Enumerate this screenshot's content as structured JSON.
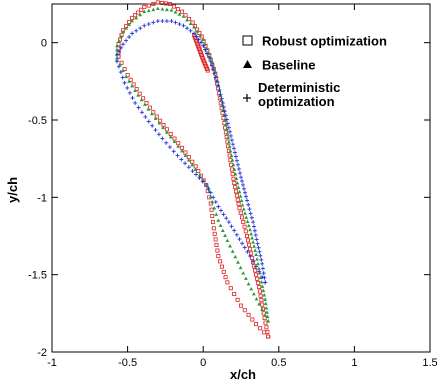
{
  "chart_data": {
    "type": "scatter",
    "xlabel": "x/ch",
    "ylabel": "y/ch",
    "xlim": [
      -1,
      1.5
    ],
    "ylim": [
      -2,
      0.25
    ],
    "x_ticks": [
      -1,
      -0.5,
      0,
      0.5,
      1,
      1.5
    ],
    "x_tick_labels": [
      "-1",
      "-0.5",
      "0",
      "0.5",
      "1",
      "1.5"
    ],
    "y_ticks": [
      0,
      -0.5,
      -1,
      -1.5,
      -2
    ],
    "y_tick_labels": [
      "0",
      "-0.5",
      "-1",
      "-1.5",
      "-2"
    ],
    "legend_position": "top-right",
    "series": [
      {
        "name": "Robust optimization",
        "marker": "square",
        "color": "#dd2222",
        "upper": [
          [
            0.43,
            -1.9
          ],
          [
            0.4,
            -1.75
          ],
          [
            0.37,
            -1.58
          ],
          [
            0.33,
            -1.42
          ],
          [
            0.29,
            -1.25
          ],
          [
            0.24,
            -1.07
          ],
          [
            0.2,
            -0.88
          ],
          [
            0.17,
            -0.7
          ],
          [
            0.14,
            -0.52
          ],
          [
            0.11,
            -0.36
          ],
          [
            0.08,
            -0.2
          ],
          [
            0.04,
            -0.08
          ],
          [
            -0.01,
            0.04
          ],
          [
            -0.07,
            0.13
          ],
          [
            -0.14,
            0.2
          ],
          [
            -0.22,
            0.25
          ],
          [
            -0.3,
            0.26
          ],
          [
            -0.39,
            0.23
          ],
          [
            -0.47,
            0.16
          ],
          [
            -0.53,
            0.08
          ],
          [
            -0.56,
            -0.01
          ],
          [
            -0.56,
            -0.09
          ]
        ],
        "lower": [
          [
            -0.56,
            -0.09
          ],
          [
            -0.5,
            -0.21
          ],
          [
            -0.42,
            -0.33
          ],
          [
            -0.33,
            -0.45
          ],
          [
            -0.24,
            -0.56
          ],
          [
            -0.14,
            -0.68
          ],
          [
            -0.05,
            -0.8
          ],
          [
            0.02,
            -0.92
          ],
          [
            0.05,
            -1.04
          ],
          [
            0.07,
            -1.2
          ],
          [
            0.1,
            -1.38
          ],
          [
            0.16,
            -1.55
          ],
          [
            0.25,
            -1.7
          ],
          [
            0.35,
            -1.82
          ],
          [
            0.43,
            -1.9
          ]
        ],
        "le_segment": [
          [
            -0.06,
            0.05
          ],
          [
            -0.03,
            -0.03
          ],
          [
            0.0,
            -0.11
          ],
          [
            0.03,
            -0.18
          ]
        ]
      },
      {
        "name": "Baseline",
        "marker": "triangle",
        "color": "#2a9a3a",
        "upper": [
          [
            0.43,
            -1.8
          ],
          [
            0.41,
            -1.66
          ],
          [
            0.38,
            -1.52
          ],
          [
            0.35,
            -1.37
          ],
          [
            0.31,
            -1.21
          ],
          [
            0.26,
            -1.05
          ],
          [
            0.22,
            -0.88
          ],
          [
            0.18,
            -0.7
          ],
          [
            0.15,
            -0.53
          ],
          [
            0.12,
            -0.37
          ],
          [
            0.09,
            -0.22
          ],
          [
            0.05,
            -0.1
          ],
          [
            0.0,
            0.02
          ],
          [
            -0.06,
            0.1
          ],
          [
            -0.13,
            0.17
          ],
          [
            -0.21,
            0.21
          ],
          [
            -0.3,
            0.22
          ],
          [
            -0.39,
            0.2
          ],
          [
            -0.47,
            0.14
          ],
          [
            -0.53,
            0.07
          ],
          [
            -0.57,
            -0.02
          ],
          [
            -0.57,
            -0.1
          ]
        ],
        "lower": [
          [
            -0.57,
            -0.1
          ],
          [
            -0.51,
            -0.22
          ],
          [
            -0.43,
            -0.34
          ],
          [
            -0.34,
            -0.46
          ],
          [
            -0.24,
            -0.58
          ],
          [
            -0.14,
            -0.7
          ],
          [
            -0.05,
            -0.82
          ],
          [
            0.03,
            -0.93
          ],
          [
            0.06,
            -1.03
          ],
          [
            0.1,
            -1.15
          ],
          [
            0.16,
            -1.28
          ],
          [
            0.23,
            -1.42
          ],
          [
            0.3,
            -1.56
          ],
          [
            0.37,
            -1.69
          ],
          [
            0.43,
            -1.8
          ]
        ]
      },
      {
        "name": "Deterministic optimization",
        "marker": "plus",
        "color": "#2233dd",
        "upper": [
          [
            0.41,
            -1.55
          ],
          [
            0.39,
            -1.43
          ],
          [
            0.36,
            -1.3
          ],
          [
            0.33,
            -1.16
          ],
          [
            0.29,
            -1.02
          ],
          [
            0.25,
            -0.87
          ],
          [
            0.21,
            -0.71
          ],
          [
            0.17,
            -0.55
          ],
          [
            0.13,
            -0.39
          ],
          [
            0.09,
            -0.25
          ],
          [
            0.05,
            -0.12
          ],
          [
            0.0,
            -0.02
          ],
          [
            -0.06,
            0.06
          ],
          [
            -0.13,
            0.11
          ],
          [
            -0.21,
            0.14
          ],
          [
            -0.3,
            0.14
          ],
          [
            -0.39,
            0.11
          ],
          [
            -0.47,
            0.06
          ],
          [
            -0.53,
            -0.01
          ],
          [
            -0.57,
            -0.08
          ],
          [
            -0.57,
            -0.12
          ]
        ],
        "lower": [
          [
            -0.57,
            -0.12
          ],
          [
            -0.52,
            -0.26
          ],
          [
            -0.45,
            -0.39
          ],
          [
            -0.36,
            -0.51
          ],
          [
            -0.27,
            -0.62
          ],
          [
            -0.17,
            -0.73
          ],
          [
            -0.07,
            -0.83
          ],
          [
            0.02,
            -0.92
          ],
          [
            0.05,
            -0.97
          ],
          [
            0.1,
            -1.06
          ],
          [
            0.17,
            -1.16
          ],
          [
            0.24,
            -1.27
          ],
          [
            0.31,
            -1.38
          ],
          [
            0.37,
            -1.48
          ],
          [
            0.41,
            -1.55
          ]
        ]
      }
    ]
  }
}
